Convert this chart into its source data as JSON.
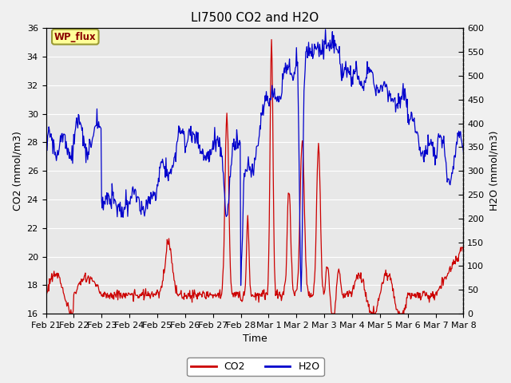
{
  "title": "LI7500 CO2 and H2O",
  "xlabel": "Time",
  "ylabel_left": "CO2 (mmol/m3)",
  "ylabel_right": "H2O (mmol/m3)",
  "co2_ylim": [
    16,
    36
  ],
  "h2o_ylim": [
    0,
    600
  ],
  "co2_yticks": [
    16,
    18,
    20,
    22,
    24,
    26,
    28,
    30,
    32,
    34,
    36
  ],
  "h2o_yticks": [
    0,
    50,
    100,
    150,
    200,
    250,
    300,
    350,
    400,
    450,
    500,
    550,
    600
  ],
  "xtick_labels": [
    "Feb 21",
    "Feb 22",
    "Feb 23",
    "Feb 24",
    "Feb 25",
    "Feb 26",
    "Feb 27",
    "Feb 28",
    "Mar 1",
    "Mar 2",
    "Mar 3",
    "Mar 4",
    "Mar 5",
    "Mar 6",
    "Mar 7",
    "Mar 8"
  ],
  "co2_color": "#cc0000",
  "h2o_color": "#0000cc",
  "fig_bg_color": "#f0f0f0",
  "plot_bg": "#e8e8e8",
  "annotation_text": "WP_flux",
  "annotation_box_color": "#ffff99",
  "annotation_border_color": "#999933",
  "annotation_text_color": "#8b0000",
  "legend_co2": "CO2",
  "legend_h2o": "H2O",
  "grid_color": "#ffffff",
  "title_fontsize": 11,
  "axis_fontsize": 9,
  "tick_fontsize": 8
}
